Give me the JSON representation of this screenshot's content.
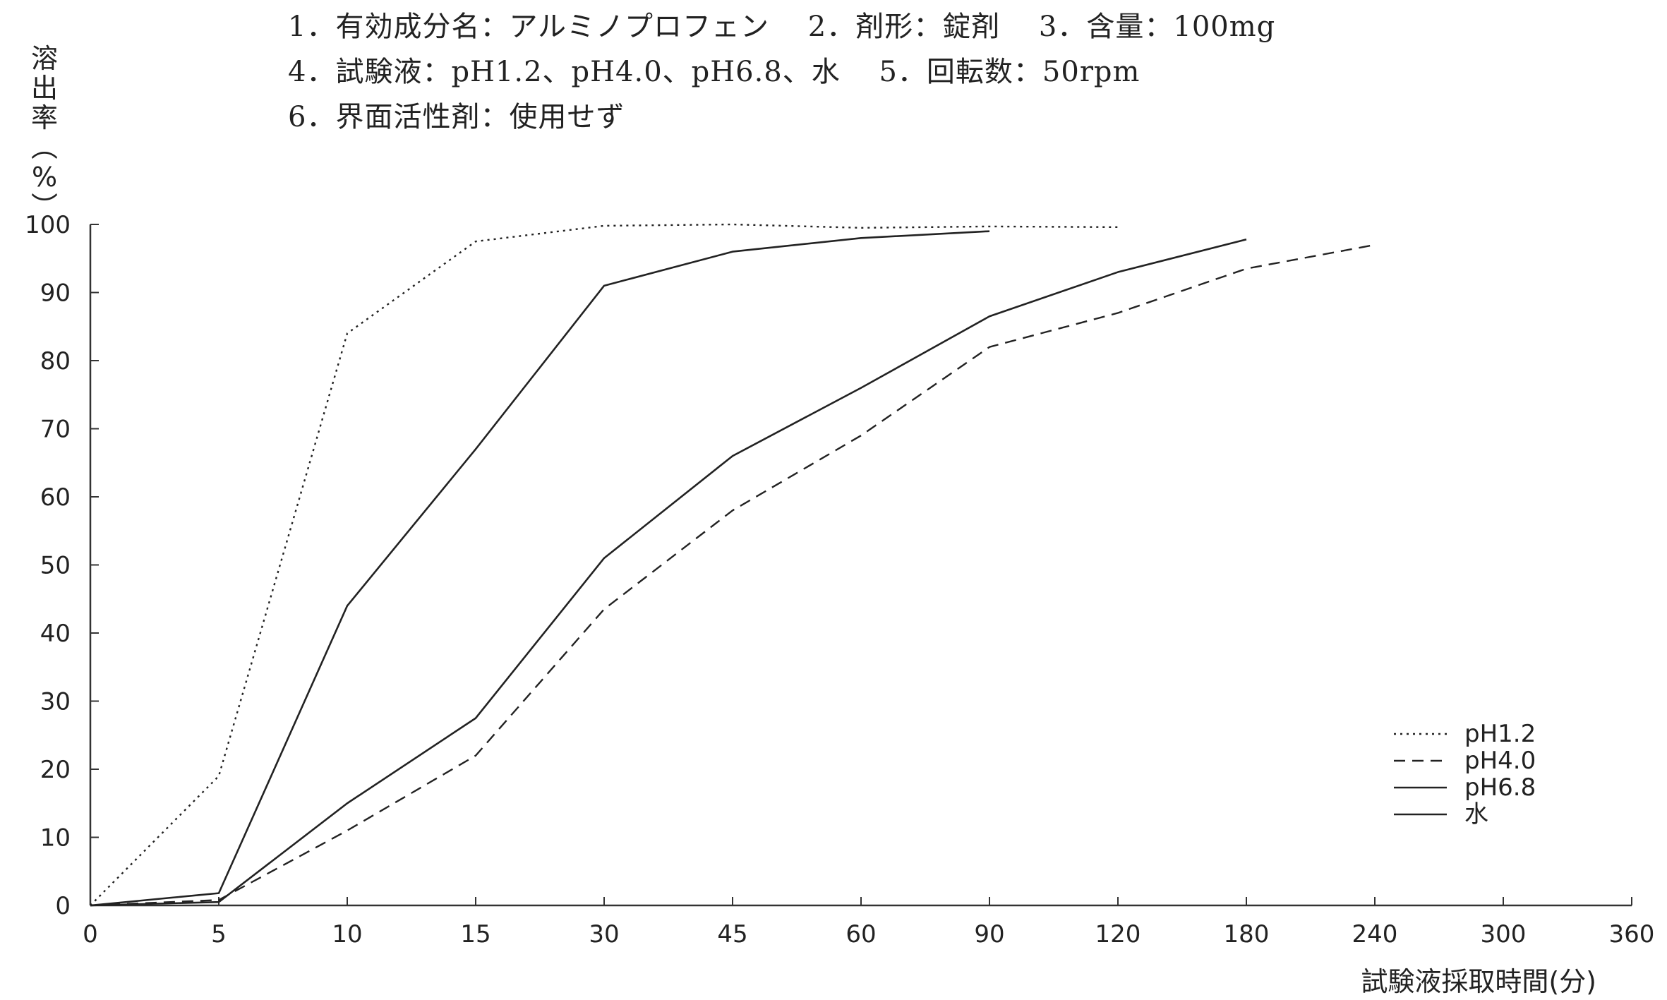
{
  "header": {
    "line1": "1．有効成分名：アルミノプロフェン　 2．剤形：錠剤　 3．含量：100mg",
    "line2": "4．試験液：pH1.2、pH4.0、pH6.8、水　 5．回転数：50rpm",
    "line3": "6．界面活性剤：使用せず"
  },
  "chart_data": {
    "type": "line",
    "ylabel": "溶出率(%)",
    "xlabel": "試験液採取時間(分)",
    "x_ticks": [
      "0",
      "5",
      "10",
      "15",
      "30",
      "45",
      "60",
      "90",
      "120",
      "180",
      "240",
      "300",
      "360"
    ],
    "y_ticks": [
      "0",
      "10",
      "20",
      "30",
      "40",
      "50",
      "60",
      "70",
      "80",
      "90",
      "100"
    ],
    "ylim": [
      0,
      100
    ],
    "grid": false,
    "legend_position": "bottom-right",
    "series": [
      {
        "name": "pH1.2",
        "style": "dotted",
        "x": [
          0,
          5,
          10,
          15,
          30,
          45,
          60,
          90,
          120
        ],
        "y": [
          0,
          19,
          84,
          97.5,
          99.8,
          100,
          99.5,
          99.7,
          99.6
        ]
      },
      {
        "name": "pH4.0",
        "style": "dashed",
        "x": [
          0,
          5,
          10,
          15,
          30,
          45,
          60,
          90,
          120,
          180,
          240
        ],
        "y": [
          0,
          0.8,
          11,
          22,
          43.5,
          58,
          69,
          82,
          87,
          93.5,
          97
        ]
      },
      {
        "name": "pH6.8",
        "style": "solid",
        "x": [
          0,
          5,
          10,
          15,
          30,
          45,
          60,
          90
        ],
        "y": [
          0,
          1.8,
          44,
          67,
          91,
          96,
          98,
          99
        ]
      },
      {
        "name": "水",
        "style": "solid",
        "x": [
          0,
          5,
          10,
          15,
          30,
          45,
          60,
          90,
          120,
          180
        ],
        "y": [
          0,
          0.5,
          15,
          27.5,
          51,
          66,
          76,
          86.5,
          93,
          97.8
        ]
      }
    ]
  }
}
